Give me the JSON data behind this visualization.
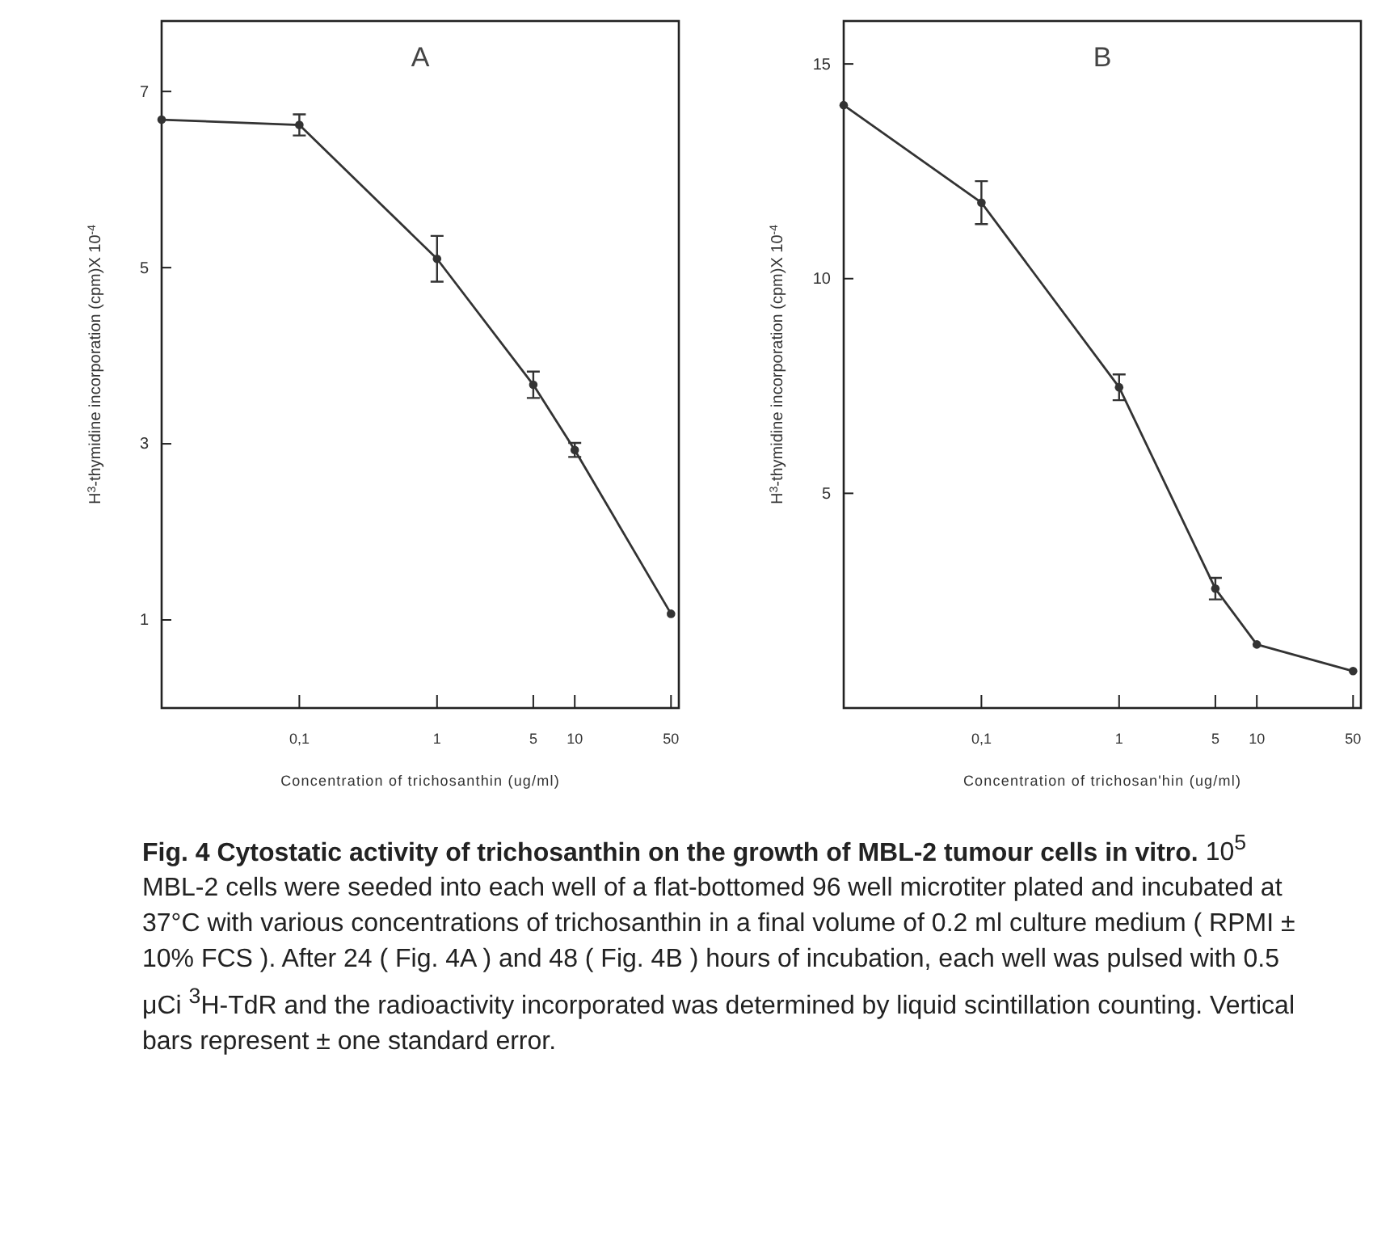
{
  "chart_data": [
    {
      "type": "line",
      "title": "A",
      "xlabel": "Concentration of trichosanthin (ug/ml)",
      "ylabel": "H$^{3}$-thymidine incorporation (cpm)X 10$^{-4}$",
      "log": "x",
      "xlim": [
        0.01,
        57
      ],
      "xticks": [
        {
          "value": 0.1,
          "label": "0,1"
        },
        1,
        5,
        10,
        50
      ],
      "ylim": [
        0,
        7.8
      ],
      "yticks": [
        1,
        3,
        5,
        7
      ],
      "marker": "circle",
      "series": [
        {
          "color": "#333333",
          "x": [
            0.01,
            0.1,
            1,
            5,
            10,
            50
          ],
          "values": [
            6.68,
            6.62,
            5.1,
            3.67,
            2.93,
            1.07
          ],
          "errors": [
            null,
            0.12,
            0.26,
            0.15,
            0.08,
            null
          ]
        }
      ]
    },
    {
      "type": "line",
      "title": "B",
      "xlabel": "Concentration of trichosan'hin (ug/ml)",
      "ylabel": "H$^{3}$-thymidine incorporation (cpm)X 10$^{-4}$",
      "log": "x",
      "xlim": [
        0.01,
        57
      ],
      "xticks": [
        {
          "value": 0.1,
          "label": "0,1"
        },
        1,
        5,
        10,
        50
      ],
      "ylim": [
        0,
        16
      ],
      "yticks": [
        5,
        10,
        15
      ],
      "marker": "circle",
      "annotations": [
        "Fig. 4  Cytostatic activity of trichosanthin on the growth of MBL-2 tumour cells in vitro.",
        "10$^{5}$ MBL-2 cells were seeded into each well of a flat-bottomed 96 well microtiter plated and incubated at 37°C with various concentrations of trichosanthin in a final volume of 0.2 ml culture medium ( RPMI ± 10% FCS ). After 24 ( Fig. 4A ) and 48 ( Fig. 4B ) hours of incubation, each well was pulsed with 0.5 μCi $^{3}$H-TdR and the radioactivity incorporated was determined by liquid scintillation counting. Vertical bars represent ± one standard error."
      ],
      "series": [
        {
          "color": "#333333",
          "x": [
            0.01,
            0.1,
            1,
            5,
            10,
            50
          ],
          "values": [
            14.04,
            11.77,
            7.47,
            2.78,
            1.48,
            0.86
          ],
          "errors": [
            null,
            0.5,
            0.3,
            0.25,
            null,
            null
          ]
        }
      ]
    }
  ]
}
